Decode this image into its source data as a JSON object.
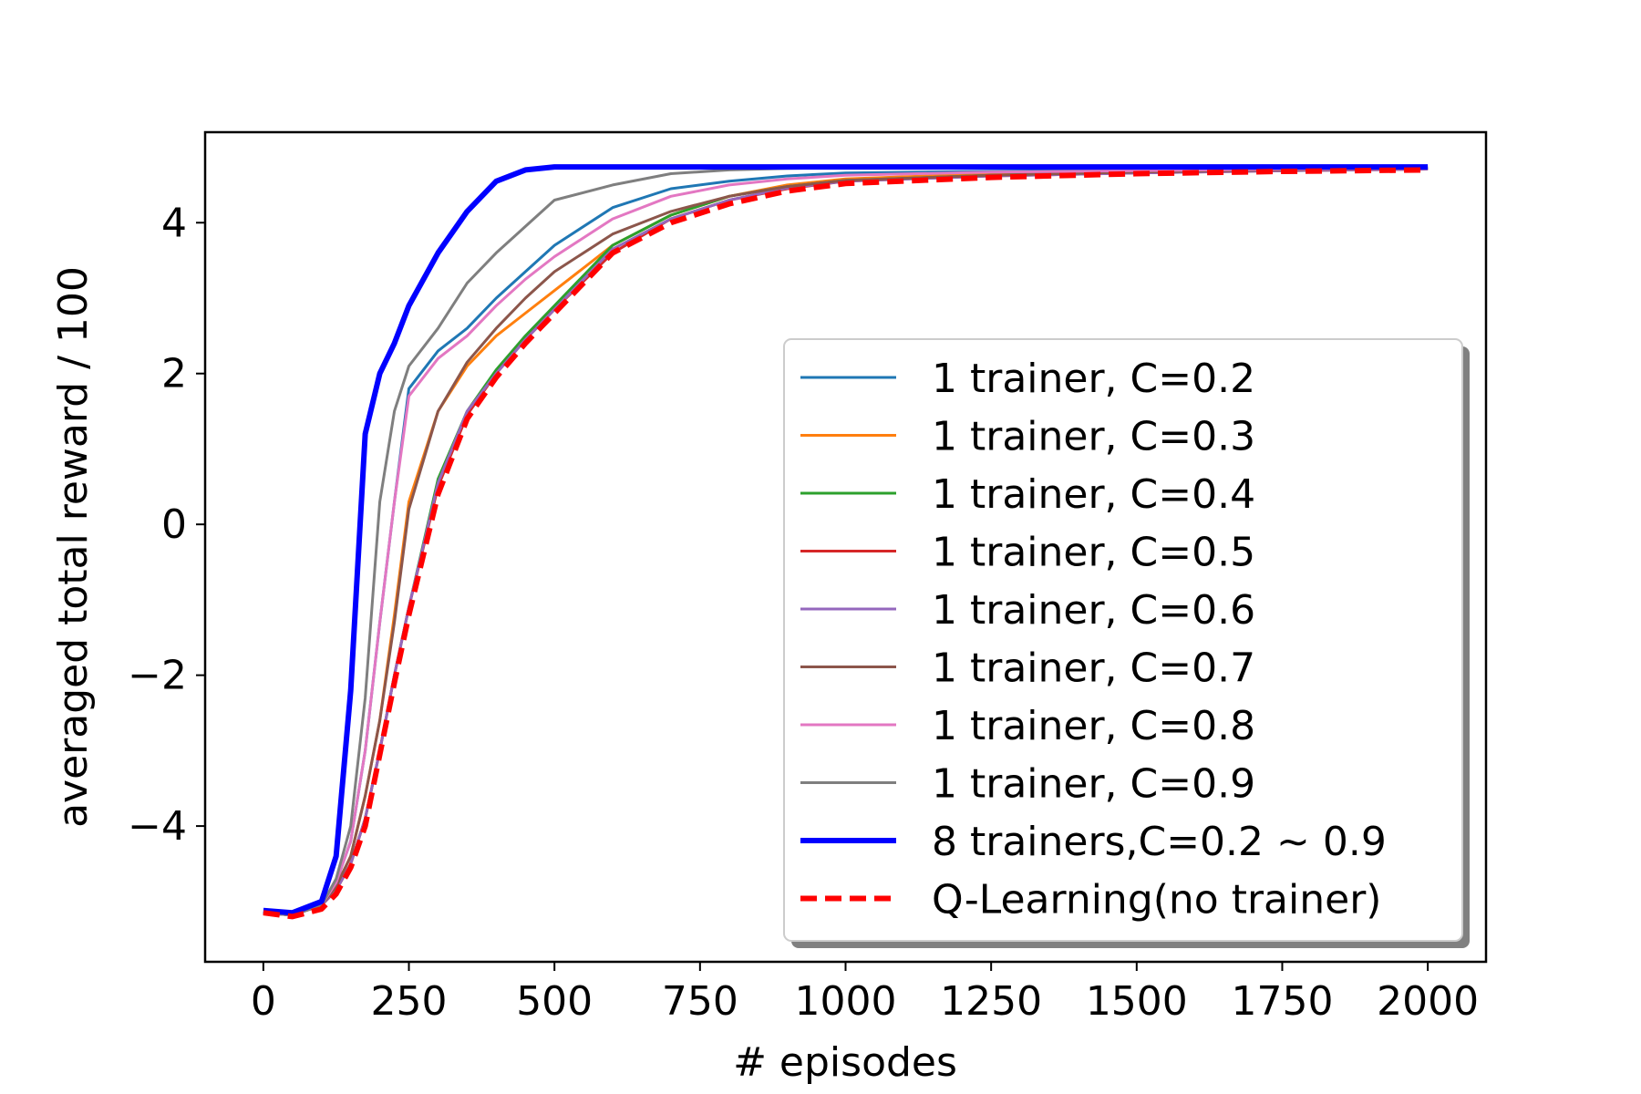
{
  "chart_data": {
    "type": "line",
    "title": "",
    "xlabel": "# episodes",
    "ylabel": "averaged total reward / 100",
    "xlim": [
      -100,
      2100
    ],
    "ylim": [
      -5.8,
      5.2
    ],
    "xticks": [
      0,
      250,
      500,
      750,
      1000,
      1250,
      1500,
      1750,
      2000
    ],
    "xtick_labels": [
      "0",
      "250",
      "500",
      "750",
      "1000",
      "1250",
      "1500",
      "1750",
      "2000"
    ],
    "yticks": [
      -4,
      -2,
      0,
      2,
      4
    ],
    "ytick_labels": [
      "−4",
      "−2",
      "0",
      "2",
      "4"
    ],
    "grid": false,
    "legend_position": "lower-right",
    "x": [
      0,
      50,
      100,
      125,
      150,
      175,
      200,
      225,
      250,
      300,
      350,
      400,
      450,
      500,
      600,
      700,
      800,
      900,
      1000,
      1250,
      1500,
      1750,
      2000
    ],
    "series": [
      {
        "name": "1 trainer, C=0.2",
        "color": "#1f77b4",
        "width": 3,
        "dash": "none",
        "values": [
          -5.15,
          -5.18,
          -5.05,
          -4.75,
          -4.2,
          -3.0,
          -1.3,
          0.3,
          1.8,
          2.3,
          2.6,
          3.0,
          3.35,
          3.7,
          4.2,
          4.45,
          4.55,
          4.62,
          4.66,
          4.68,
          4.7,
          4.71,
          4.72
        ]
      },
      {
        "name": "1 trainer, C=0.3",
        "color": "#ff7f0e",
        "width": 3,
        "dash": "none",
        "values": [
          -5.15,
          -5.18,
          -5.05,
          -4.8,
          -4.4,
          -3.6,
          -2.6,
          -1.2,
          0.3,
          1.5,
          2.1,
          2.5,
          2.8,
          3.1,
          3.7,
          4.1,
          4.35,
          4.5,
          4.58,
          4.65,
          4.68,
          4.7,
          4.72
        ]
      },
      {
        "name": "1 trainer, C=0.4",
        "color": "#2ca02c",
        "width": 3,
        "dash": "none",
        "values": [
          -5.15,
          -5.18,
          -5.05,
          -4.85,
          -4.5,
          -3.9,
          -3.0,
          -2.0,
          -1.1,
          0.6,
          1.5,
          2.05,
          2.5,
          2.9,
          3.7,
          4.1,
          4.35,
          4.48,
          4.56,
          4.63,
          4.67,
          4.7,
          4.72
        ]
      },
      {
        "name": "1 trainer, C=0.5",
        "color": "#d62728",
        "width": 3,
        "dash": "none",
        "values": [
          -5.15,
          -5.18,
          -5.05,
          -4.85,
          -4.5,
          -3.9,
          -3.0,
          -2.0,
          -1.1,
          0.5,
          1.45,
          2.0,
          2.45,
          2.85,
          3.6,
          4.05,
          4.3,
          4.45,
          4.55,
          4.62,
          4.66,
          4.69,
          4.71
        ]
      },
      {
        "name": "1 trainer, C=0.6",
        "color": "#9467bd",
        "width": 3,
        "dash": "none",
        "values": [
          -5.15,
          -5.18,
          -5.05,
          -4.85,
          -4.5,
          -3.9,
          -3.0,
          -2.0,
          -1.1,
          0.55,
          1.5,
          2.0,
          2.45,
          2.85,
          3.65,
          4.05,
          4.3,
          4.46,
          4.55,
          4.62,
          4.66,
          4.69,
          4.71
        ]
      },
      {
        "name": "1 trainer, C=0.7",
        "color": "#8c564b",
        "width": 3,
        "dash": "none",
        "values": [
          -5.15,
          -5.18,
          -5.05,
          -4.8,
          -4.4,
          -3.6,
          -2.6,
          -1.3,
          0.2,
          1.5,
          2.15,
          2.6,
          3.0,
          3.35,
          3.85,
          4.15,
          4.35,
          4.48,
          4.56,
          4.63,
          4.67,
          4.7,
          4.72
        ]
      },
      {
        "name": "1 trainer, C=0.8",
        "color": "#e377c2",
        "width": 3,
        "dash": "none",
        "values": [
          -5.15,
          -5.18,
          -5.05,
          -4.75,
          -4.2,
          -3.0,
          -1.3,
          0.3,
          1.7,
          2.2,
          2.5,
          2.9,
          3.25,
          3.55,
          4.05,
          4.35,
          4.5,
          4.58,
          4.63,
          4.67,
          4.69,
          4.71,
          4.72
        ]
      },
      {
        "name": "1 trainer, C=0.9",
        "color": "#7f7f7f",
        "width": 3,
        "dash": "none",
        "values": [
          -5.15,
          -5.18,
          -5.05,
          -4.7,
          -4.0,
          -2.3,
          0.3,
          1.5,
          2.1,
          2.6,
          3.2,
          3.6,
          3.95,
          4.3,
          4.5,
          4.65,
          4.7,
          4.72,
          4.73,
          4.73,
          4.73,
          4.74,
          4.74
        ]
      },
      {
        "name": "8 trainers,C=0.2 ∼ 0.9",
        "color": "#0000ff",
        "width": 6,
        "dash": "none",
        "values": [
          -5.12,
          -5.15,
          -5.0,
          -4.4,
          -2.2,
          1.2,
          2.0,
          2.4,
          2.9,
          3.6,
          4.15,
          4.55,
          4.7,
          4.74,
          4.74,
          4.74,
          4.74,
          4.74,
          4.74,
          4.74,
          4.74,
          4.74,
          4.74
        ]
      },
      {
        "name": "Q-Learning(no trainer)",
        "color": "#ff0000",
        "width": 6,
        "dash": "18,9",
        "values": [
          -5.15,
          -5.2,
          -5.1,
          -4.9,
          -4.55,
          -4.0,
          -3.05,
          -2.1,
          -1.2,
          0.4,
          1.4,
          1.95,
          2.4,
          2.8,
          3.6,
          4.0,
          4.25,
          4.42,
          4.52,
          4.6,
          4.65,
          4.68,
          4.7
        ]
      }
    ]
  }
}
